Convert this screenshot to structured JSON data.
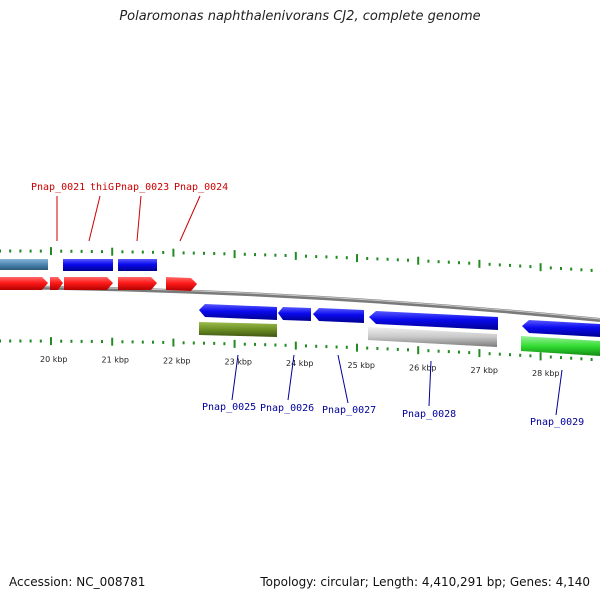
{
  "header": {
    "title": "Polaromonas naphthalenivorans CJ2, complete genome"
  },
  "footer": {
    "accession": "Accession: NC_008781",
    "topology": "Topology: circular; Length: 4,410,291 bp; Genes: 4,140"
  },
  "colors": {
    "forward_label": "#cc0000",
    "reverse_label": "#00009a",
    "cds_red": "#ff1a1a",
    "cds_blue": "#0a0aee",
    "steelblue": "#4d86b3",
    "olive": "#6b8e23",
    "grey": "#c8c8c8",
    "green": "#33dd33",
    "tick": "#228b22",
    "backbone": "#7a7a7a"
  },
  "scale": {
    "labels": [
      "20 kbp",
      "21 kbp",
      "22 kbp",
      "23 kbp",
      "24 kbp",
      "25 kbp",
      "26 kbp",
      "27 kbp",
      "28 kbp"
    ]
  },
  "forward_genes": [
    {
      "label": "Pnap_0021"
    },
    {
      "label": "thiG"
    },
    {
      "label": "Pnap_0023"
    },
    {
      "label": "Pnap_0024"
    }
  ],
  "reverse_genes": [
    {
      "label": "Pnap_0025"
    },
    {
      "label": "Pnap_0026"
    },
    {
      "label": "Pnap_0027"
    },
    {
      "label": "Pnap_0028"
    },
    {
      "label": "Pnap_0029"
    }
  ]
}
